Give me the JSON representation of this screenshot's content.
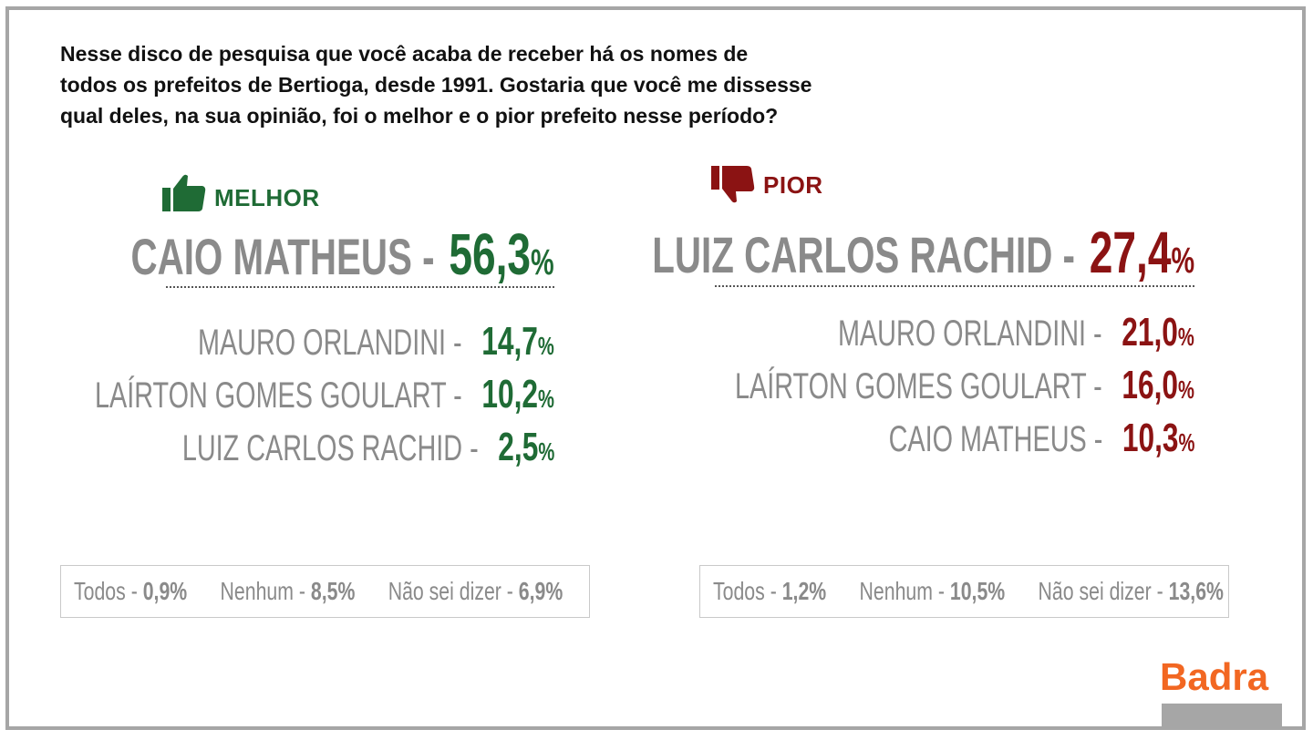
{
  "question": {
    "line1": "Nesse disco de pesquisa que você acaba de receber há os nomes de",
    "line2": "todos os prefeitos de Bertioga, desde 1991. Gostaria que você me dissesse",
    "line3": "qual deles, na sua opinião, foi o melhor e o pior prefeito nesse período?"
  },
  "best": {
    "label": "MELHOR",
    "icon": "thumbs-up-icon",
    "color": "#1f6b35",
    "top": {
      "name": "CAIO MATHEUS -",
      "value": "56,3",
      "pct": "%"
    },
    "rows": [
      {
        "name": "MAURO ORLANDINI -",
        "value": "14,7",
        "pct": "%"
      },
      {
        "name": "LAÍRTON GOMES GOULART -",
        "value": "10,2",
        "pct": "%"
      },
      {
        "name": "LUIZ CARLOS RACHID -",
        "value": "2,5",
        "pct": "%"
      }
    ],
    "footer": [
      {
        "label": "Todos - ",
        "value": "0,9%"
      },
      {
        "label": "Nenhum - ",
        "value": "8,5%"
      },
      {
        "label": "Não sei dizer - ",
        "value": "6,9%"
      }
    ]
  },
  "worst": {
    "label": "PIOR",
    "icon": "thumbs-down-icon",
    "color": "#8b1313",
    "top": {
      "name": "LUIZ CARLOS RACHID -",
      "value": "27,4",
      "pct": "%"
    },
    "rows": [
      {
        "name": "MAURO ORLANDINI -",
        "value": "21,0",
        "pct": "%"
      },
      {
        "name": "LAÍRTON GOMES GOULART -",
        "value": "16,0",
        "pct": "%"
      },
      {
        "name": "CAIO MATHEUS -",
        "value": "10,3",
        "pct": "%"
      }
    ],
    "footer": [
      {
        "label": "Todos - ",
        "value": "1,2%"
      },
      {
        "label": "Nenhum - ",
        "value": "10,5%"
      },
      {
        "label": "Não sei dizer - ",
        "value": "13,6%"
      }
    ]
  },
  "logo": {
    "text": "Badra",
    "color": "#f26722"
  },
  "chart_data": [
    {
      "type": "table",
      "title": "MELHOR",
      "categories": [
        "CAIO MATHEUS",
        "MAURO ORLANDINI",
        "LAÍRTON GOMES GOULART",
        "LUIZ CARLOS RACHID",
        "Todos",
        "Nenhum",
        "Não sei dizer"
      ],
      "values": [
        56.3,
        14.7,
        10.2,
        2.5,
        0.9,
        8.5,
        6.9
      ]
    },
    {
      "type": "table",
      "title": "PIOR",
      "categories": [
        "LUIZ CARLOS RACHID",
        "MAURO ORLANDINI",
        "LAÍRTON GOMES GOULART",
        "CAIO MATHEUS",
        "Todos",
        "Nenhum",
        "Não sei dizer"
      ],
      "values": [
        27.4,
        21.0,
        16.0,
        10.3,
        1.2,
        10.5,
        13.6
      ]
    }
  ]
}
